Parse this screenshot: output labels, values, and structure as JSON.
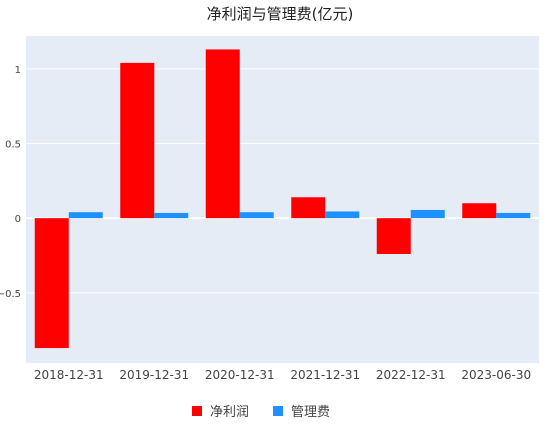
{
  "chart_data": {
    "type": "bar",
    "title": "净利润与管理费(亿元)",
    "xlabel": "",
    "ylabel": "",
    "categories": [
      "2018-12-31",
      "2019-12-31",
      "2020-12-31",
      "2021-12-31",
      "2022-12-31",
      "2023-06-30"
    ],
    "series": [
      {
        "name": "净利润",
        "color": "#ff0000",
        "values": [
          -0.87,
          1.04,
          1.13,
          0.14,
          -0.24,
          0.1
        ]
      },
      {
        "name": "管理费",
        "color": "#1e90ff",
        "values": [
          0.04,
          0.035,
          0.04,
          0.045,
          0.055,
          0.035
        ]
      }
    ],
    "ylim": [
      -0.97,
      1.22
    ],
    "yticks": [
      {
        "value": -0.5,
        "label": "−0.5"
      },
      {
        "value": 0,
        "label": "0"
      },
      {
        "value": 0.5,
        "label": "0.5"
      },
      {
        "value": 1,
        "label": "1"
      }
    ],
    "grid": true,
    "legend": "bottom-center",
    "background": "#e5ecf6"
  }
}
